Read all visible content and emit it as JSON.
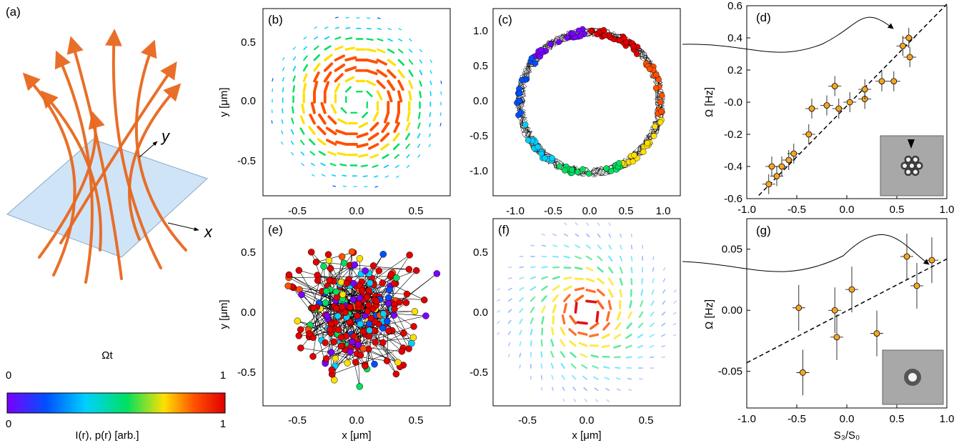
{
  "panels": {
    "a": {
      "label": "(a)",
      "axis_x": "x",
      "axis_y": "y",
      "arrow_color": "#e8681e",
      "plane_color": "#cfe4f7"
    },
    "colorbar": {
      "top_label": "Ωt",
      "top_min": "0",
      "top_max": "1",
      "bottom_min": "0",
      "bottom_max": "1",
      "bottom_label": "I(r), p(r) [arb.]",
      "colors": [
        "#7a00ff",
        "#0050ff",
        "#00d0ff",
        "#00e060",
        "#ffe000",
        "#ff5000",
        "#e00000"
      ]
    },
    "b": {
      "label": "(b)"
    },
    "c": {
      "label": "(c)"
    },
    "e": {
      "label": "(e)"
    },
    "f": {
      "label": "(f)"
    },
    "d": {
      "label": "(d)"
    },
    "g": {
      "label": "(g)"
    }
  },
  "spatial_axes": {
    "xlabel": "x [μm]",
    "ylabel": "y [μm]",
    "ticks_bce": [
      "-0.5",
      "0.0",
      "0.5"
    ],
    "ticks_c": [
      "-1.0",
      "-0.5",
      "0.0",
      "0.5",
      "1.0"
    ]
  },
  "chart_data": [
    {
      "panel": "d",
      "type": "scatter",
      "xlabel": "",
      "ylabel": "Ω [Hz]",
      "xlim": [
        -1.0,
        1.0
      ],
      "ylim": [
        -0.6,
        0.6
      ],
      "xticks": [
        "-1.0",
        "-0.5",
        "0.0",
        "0.5",
        "1.0"
      ],
      "yticks": [
        "-0.6",
        "-0.4",
        "-0.2",
        "-0.0",
        "0.2",
        "0.4",
        "0.6"
      ],
      "points": [
        {
          "x": -0.78,
          "y": -0.51
        },
        {
          "x": -0.75,
          "y": -0.4
        },
        {
          "x": -0.7,
          "y": -0.46
        },
        {
          "x": -0.65,
          "y": -0.4
        },
        {
          "x": -0.58,
          "y": -0.36
        },
        {
          "x": -0.53,
          "y": -0.32
        },
        {
          "x": -0.38,
          "y": -0.2
        },
        {
          "x": -0.35,
          "y": -0.04
        },
        {
          "x": -0.2,
          "y": -0.02
        },
        {
          "x": -0.12,
          "y": 0.1
        },
        {
          "x": -0.08,
          "y": -0.04
        },
        {
          "x": 0.03,
          "y": 0.0
        },
        {
          "x": 0.18,
          "y": 0.02
        },
        {
          "x": 0.18,
          "y": 0.08
        },
        {
          "x": 0.35,
          "y": 0.13
        },
        {
          "x": 0.47,
          "y": 0.13
        },
        {
          "x": 0.56,
          "y": 0.35
        },
        {
          "x": 0.62,
          "y": 0.4
        },
        {
          "x": 0.63,
          "y": 0.28
        }
      ],
      "fit_line": [
        [
          -0.88,
          -0.58
        ],
        [
          1.0,
          0.61
        ]
      ],
      "marker_color": "#f5a623",
      "callout_target": {
        "x": 0.62,
        "y": 0.4
      }
    },
    {
      "panel": "g",
      "type": "scatter",
      "xlabel": "S₃/S₀",
      "ylabel": "Ω [Hz]",
      "xlim": [
        -1.0,
        1.0
      ],
      "ylim": [
        -0.08,
        0.075
      ],
      "xticks": [
        "-1.0",
        "-0.5",
        "0.0",
        "0.5",
        "1.0"
      ],
      "yticks": [
        "-0.05",
        "0.00",
        "0.05"
      ],
      "points": [
        {
          "x": -0.48,
          "y": 0.002
        },
        {
          "x": -0.44,
          "y": -0.051
        },
        {
          "x": -0.12,
          "y": 0.0
        },
        {
          "x": -0.1,
          "y": -0.022
        },
        {
          "x": 0.05,
          "y": 0.017
        },
        {
          "x": 0.3,
          "y": -0.019
        },
        {
          "x": 0.6,
          "y": 0.044
        },
        {
          "x": 0.7,
          "y": 0.02
        },
        {
          "x": 0.85,
          "y": 0.041
        }
      ],
      "fit_line": [
        [
          -1.0,
          -0.043
        ],
        [
          1.0,
          0.042
        ]
      ],
      "marker_color": "#f5a623",
      "callout_target": {
        "x": 0.85,
        "y": 0.041
      }
    }
  ]
}
